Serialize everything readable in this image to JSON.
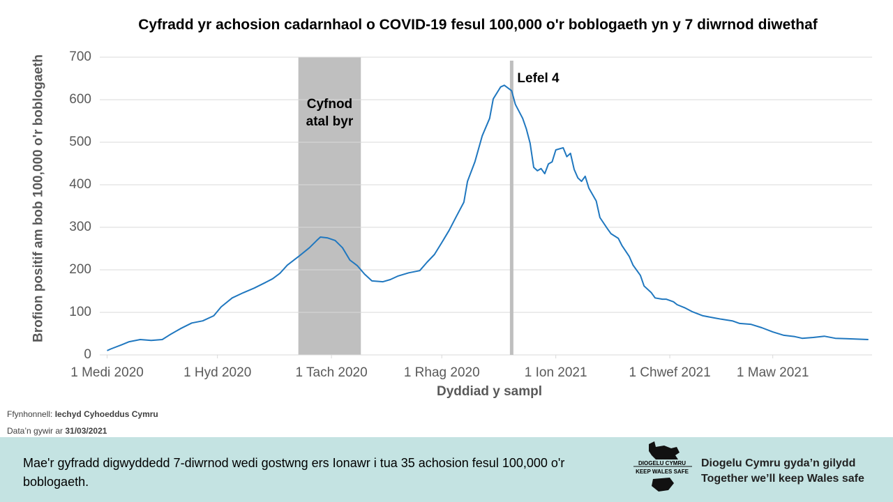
{
  "chart_data": {
    "type": "line",
    "title": "Cyfradd yr achosion cadarnhaol o COVID-19 fesul 100,000 o'r boblogaeth yn y 7 diwrnod diwethaf",
    "y_label": "Brofion positif  am bob 100,000 o'r boblogaeth",
    "x_label": "Dyddiad y sampl",
    "color": "#1f77bf",
    "x": [
      "2020-09-01",
      "2020-09-02",
      "2020-09-05",
      "2020-09-07",
      "2020-09-10",
      "2020-09-13",
      "2020-09-16",
      "2020-09-18",
      "2020-09-21",
      "2020-09-24",
      "2020-09-27",
      "2020-09-30",
      "2020-10-02",
      "2020-10-05",
      "2020-10-08",
      "2020-10-11",
      "2020-10-14",
      "2020-10-16",
      "2020-10-18",
      "2020-10-20",
      "2020-10-23",
      "2020-10-26",
      "2020-10-28",
      "2020-10-29",
      "2020-10-31",
      "2020-11-02",
      "2020-11-04",
      "2020-11-06",
      "2020-11-08",
      "2020-11-10",
      "2020-11-12",
      "2020-11-15",
      "2020-11-17",
      "2020-11-19",
      "2020-11-22",
      "2020-11-25",
      "2020-11-27",
      "2020-11-29",
      "2020-12-01",
      "2020-12-03",
      "2020-12-05",
      "2020-12-07",
      "2020-12-08",
      "2020-12-10",
      "2020-12-12",
      "2020-12-14",
      "2020-12-15",
      "2020-12-17",
      "2020-12-18",
      "2020-12-20",
      "2020-12-21",
      "2020-12-23",
      "2020-12-24",
      "2020-12-25",
      "2020-12-26",
      "2020-12-27",
      "2020-12-28",
      "2020-12-29",
      "2020-12-30",
      "2020-12-31",
      "2021-01-01",
      "2021-01-03",
      "2021-01-04",
      "2021-01-05",
      "2021-01-06",
      "2021-01-07",
      "2021-01-08",
      "2021-01-09",
      "2021-01-10",
      "2021-01-12",
      "2021-01-13",
      "2021-01-15",
      "2021-01-16",
      "2021-01-18",
      "2021-01-19",
      "2021-01-21",
      "2021-01-22",
      "2021-01-24",
      "2021-01-25",
      "2021-01-27",
      "2021-01-28",
      "2021-01-30",
      "2021-01-31",
      "2021-02-02",
      "2021-02-03",
      "2021-02-05",
      "2021-02-07",
      "2021-02-10",
      "2021-02-13",
      "2021-02-15",
      "2021-02-18",
      "2021-02-20",
      "2021-02-23",
      "2021-02-26",
      "2021-03-01",
      "2021-03-04",
      "2021-03-07",
      "2021-03-09",
      "2021-03-12",
      "2021-03-15",
      "2021-03-18",
      "2021-03-21",
      "2021-03-24",
      "2021-03-27"
    ],
    "values": [
      10,
      14,
      24,
      31,
      36,
      34,
      36,
      47,
      62,
      75,
      80,
      92,
      113,
      134,
      146,
      157,
      170,
      179,
      192,
      211,
      231,
      252,
      269,
      277,
      275,
      269,
      252,
      223,
      210,
      190,
      174,
      172,
      177,
      185,
      193,
      198,
      218,
      236,
      264,
      293,
      326,
      359,
      408,
      454,
      515,
      556,
      602,
      630,
      634,
      621,
      589,
      556,
      531,
      498,
      441,
      433,
      438,
      426,
      449,
      454,
      482,
      487,
      466,
      474,
      436,
      416,
      408,
      420,
      392,
      362,
      323,
      297,
      285,
      274,
      257,
      231,
      211,
      187,
      162,
      146,
      134,
      131,
      131,
      125,
      118,
      111,
      102,
      92,
      87,
      84,
      80,
      74,
      72,
      64,
      54,
      46,
      43,
      39,
      41,
      44,
      39,
      38,
      37,
      36
    ],
    "xlim": [
      "2020-08-30",
      "2021-03-28"
    ],
    "xticks": [
      {
        "value": "2020-09-01",
        "label": "1 Medi 2020"
      },
      {
        "value": "2020-10-01",
        "label": "1 Hyd 2020"
      },
      {
        "value": "2020-11-01",
        "label": "1 Tach 2020"
      },
      {
        "value": "2020-12-01",
        "label": "1 Rhag 2020"
      },
      {
        "value": "2021-01-01",
        "label": "1 Ion 2021"
      },
      {
        "value": "2021-02-01",
        "label": "1 Chwef 2021"
      },
      {
        "value": "2021-03-01",
        "label": "1 Maw 2021"
      }
    ],
    "ylim": [
      0,
      700
    ],
    "yticks": [
      0,
      100,
      200,
      300,
      400,
      500,
      600,
      700
    ],
    "grid": true,
    "shaded_periods": [
      {
        "start": "2020-10-23",
        "end": "2020-11-09",
        "label": "Cyfnod atal byr",
        "color": "#bfbfbf"
      }
    ],
    "vlines": [
      {
        "x": "2020-12-20",
        "label": "Lefel 4",
        "color": "#bfbfbf"
      }
    ]
  },
  "footer": {
    "source_label": "Ffynhonnell:",
    "source": "Iechyd Cyhoeddus Cymru",
    "date_label": "Data’n gywir ar",
    "date": "31/03/2021"
  },
  "banner": {
    "message": "Mae'r gyfradd digwyddedd 7-diwrnod wedi gostwng ers Ionawr i tua 35 achosion fesul 100,000 o'r boblogaeth.",
    "logo_top": "DIOGELU CYMRU",
    "logo_bottom": "KEEP WALES SAFE",
    "slogan_cy": "Diogelu Cymru gyda’n gilydd",
    "slogan_en": "Together we’ll keep Wales safe"
  }
}
